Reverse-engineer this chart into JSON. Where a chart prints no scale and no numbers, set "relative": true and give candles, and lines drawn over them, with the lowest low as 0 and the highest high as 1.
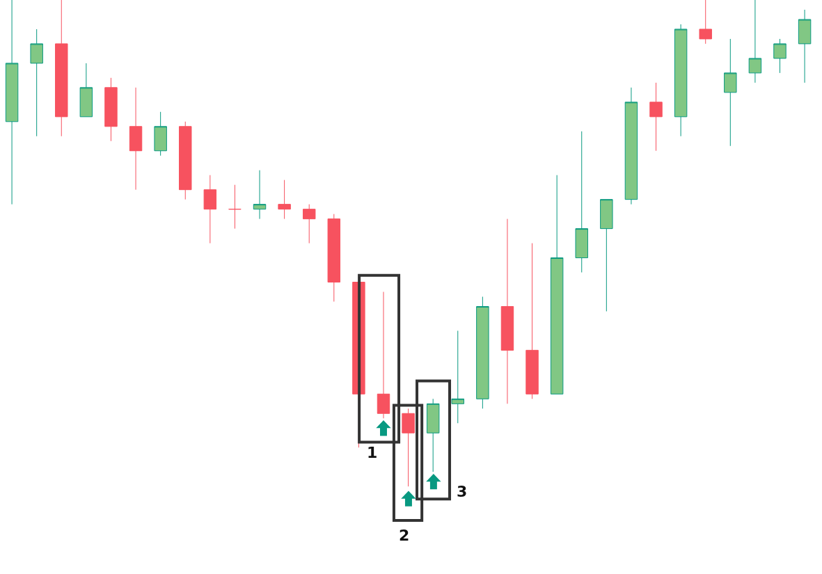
{
  "chart_data": {
    "type": "candlestick",
    "relative": true,
    "categories": [
      null,
      null,
      null,
      null,
      null,
      null,
      null,
      null,
      null,
      null,
      null,
      null,
      null,
      null,
      null,
      null,
      null,
      null,
      null,
      null,
      null,
      null,
      null,
      null,
      null,
      null,
      null,
      null,
      null,
      null,
      null,
      null,
      null
    ],
    "ohlc": [
      [
        0.75,
        1.0,
        0.58,
        0.87
      ],
      [
        0.87,
        0.94,
        0.72,
        0.91
      ],
      [
        0.91,
        1.0,
        0.72,
        0.76
      ],
      [
        0.76,
        0.87,
        0.76,
        0.82
      ],
      [
        0.82,
        0.84,
        0.71,
        0.74
      ],
      [
        0.74,
        0.82,
        0.61,
        0.69
      ],
      [
        0.69,
        0.77,
        0.68,
        0.74
      ],
      [
        0.74,
        0.75,
        0.59,
        0.61
      ],
      [
        0.61,
        0.64,
        0.5,
        0.57
      ],
      [
        0.57,
        0.62,
        0.53,
        0.57
      ],
      [
        0.57,
        0.65,
        0.55,
        0.58
      ],
      [
        0.58,
        0.63,
        0.55,
        0.57
      ],
      [
        0.57,
        0.58,
        0.5,
        0.55
      ],
      [
        0.55,
        0.56,
        0.38,
        0.42
      ],
      [
        0.42,
        0.42,
        0.08,
        0.19
      ],
      [
        0.19,
        0.4,
        0.14,
        0.15
      ],
      [
        0.15,
        0.16,
        0.0,
        0.11
      ],
      [
        0.11,
        0.18,
        0.03,
        0.17
      ],
      [
        0.17,
        0.32,
        0.13,
        0.18
      ],
      [
        0.18,
        0.39,
        0.16,
        0.37
      ],
      [
        0.37,
        0.55,
        0.17,
        0.28
      ],
      [
        0.28,
        0.5,
        0.18,
        0.19
      ],
      [
        0.19,
        0.64,
        0.19,
        0.47
      ],
      [
        0.47,
        0.73,
        0.44,
        0.53
      ],
      [
        0.53,
        0.59,
        0.36,
        0.59
      ],
      [
        0.59,
        0.82,
        0.58,
        0.79
      ],
      [
        0.79,
        0.83,
        0.69,
        0.76
      ],
      [
        0.76,
        0.95,
        0.72,
        0.94
      ],
      [
        0.94,
        1.0,
        0.91,
        0.92
      ],
      [
        0.81,
        0.92,
        0.7,
        0.85
      ],
      [
        0.85,
        1.0,
        0.83,
        0.88
      ],
      [
        0.88,
        0.92,
        0.85,
        0.91
      ],
      [
        0.91,
        0.98,
        0.83,
        0.96
      ]
    ],
    "colors": [
      "#81c784",
      "#81c784",
      "#f7525f",
      "#81c784",
      "#f7525f",
      "#f7525f",
      "#81c784",
      "#f7525f",
      "#f7525f",
      "#f7525f",
      "#81c784",
      "#f7525f",
      "#f7525f",
      "#f7525f",
      "#f7525f",
      "#f7525f",
      "#f7525f",
      "#81c784",
      "#81c784",
      "#81c784",
      "#f7525f",
      "#f7525f",
      "#81c784",
      "#81c784",
      "#81c784",
      "#81c784",
      "#f7525f",
      "#81c784",
      "#f7525f",
      "#81c784",
      "#81c784",
      "#81c784",
      "#81c784"
    ],
    "annotations": [
      "1",
      "2",
      "3"
    ]
  }
}
